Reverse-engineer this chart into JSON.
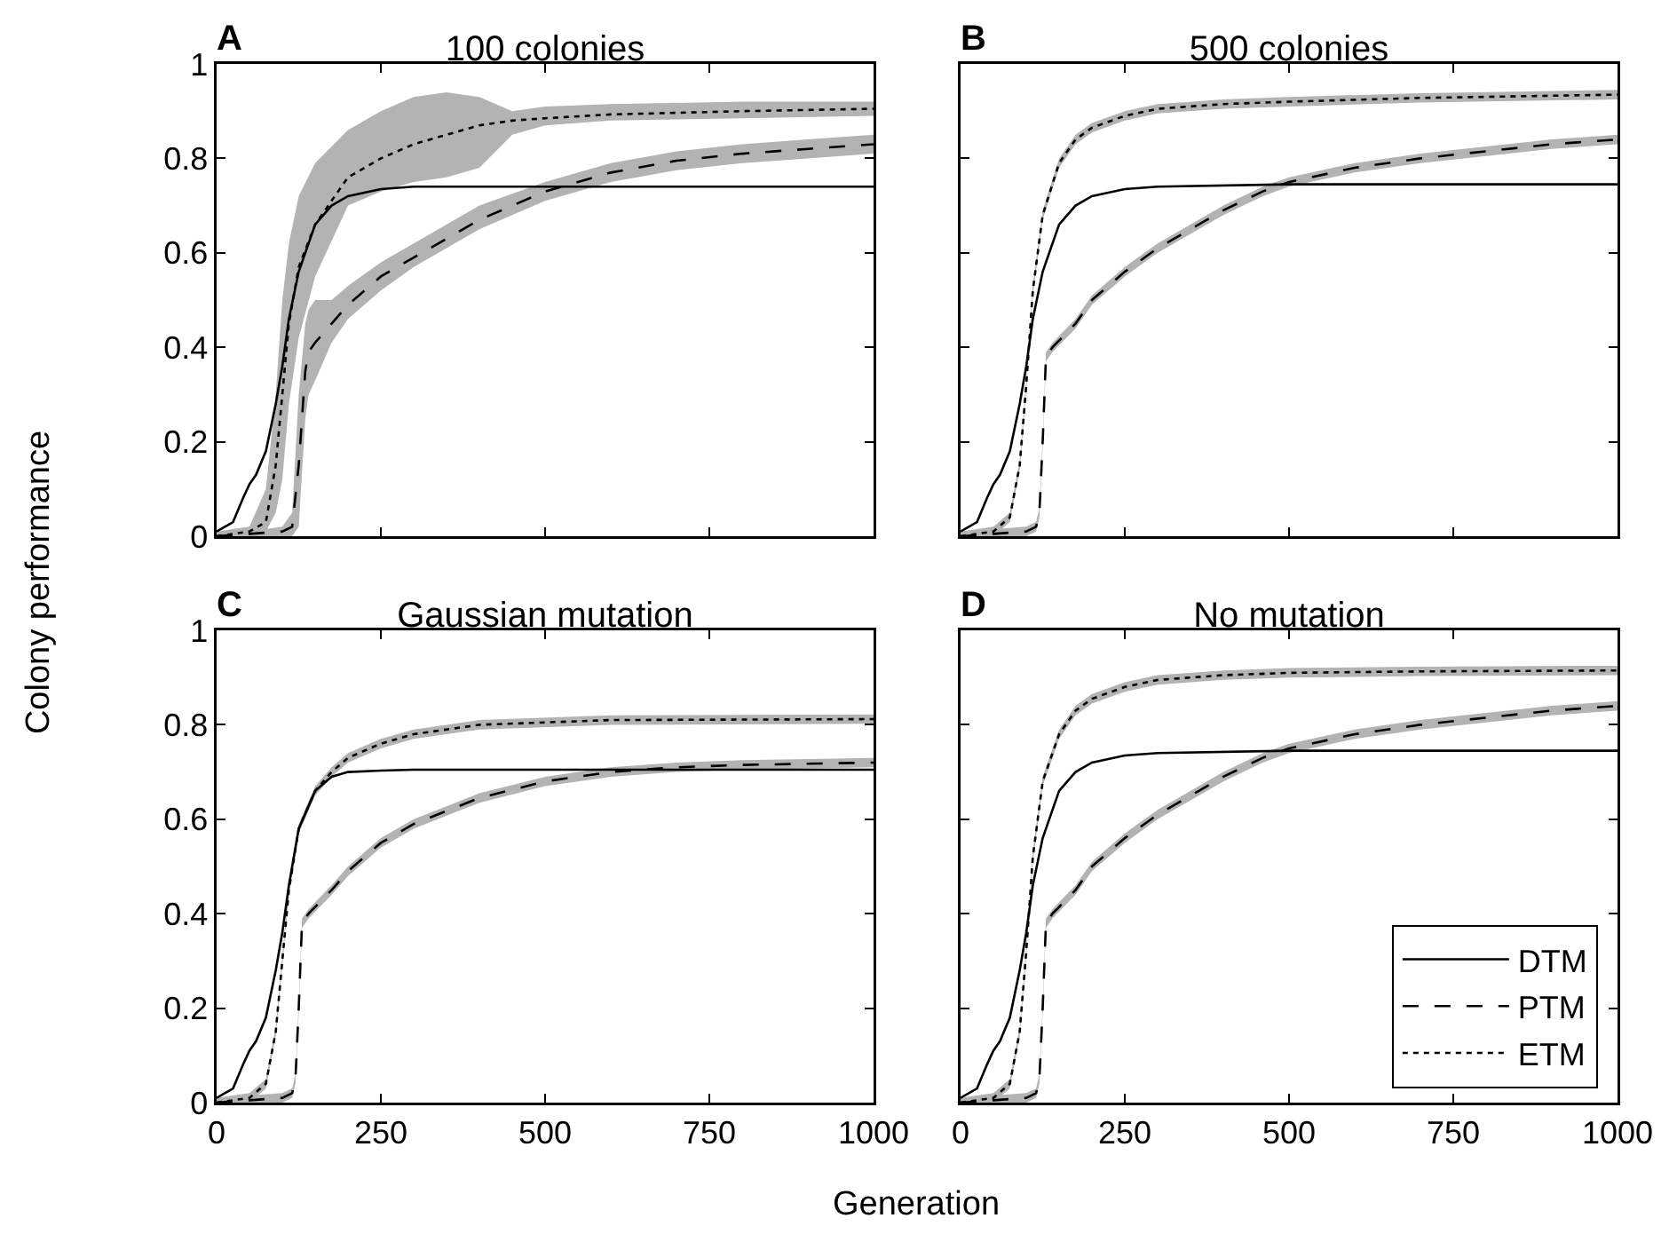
{
  "chart_data": [
    {
      "type": "line",
      "title": "100 colonies",
      "annotations": [
        "A"
      ],
      "xlim": [
        0,
        1000
      ],
      "xticks": [
        0,
        250,
        500,
        750,
        1000
      ],
      "ylim": [
        0,
        1
      ],
      "yticks": [
        0,
        0.2,
        0.4,
        0.6,
        0.8,
        1
      ],
      "tick_labels": "y",
      "grid": false,
      "series": [
        {
          "color": "#000000",
          "line_style": "solid",
          "x": [
            0,
            25,
            40,
            50,
            60,
            75,
            90,
            100,
            110,
            125,
            150,
            175,
            200,
            250,
            300,
            500,
            1000
          ],
          "values": [
            0.01,
            0.03,
            0.08,
            0.11,
            0.13,
            0.18,
            0.28,
            0.36,
            0.46,
            0.56,
            0.66,
            0.7,
            0.72,
            0.735,
            0.74,
            0.74,
            0.74
          ]
        },
        {
          "color": "#000000",
          "line_style": "dashed",
          "x": [
            0,
            50,
            100,
            115,
            125,
            135,
            140,
            150,
            175,
            200,
            250,
            300,
            400,
            500,
            600,
            700,
            800,
            900,
            1000
          ],
          "values": [
            0,
            0.005,
            0.01,
            0.02,
            0.15,
            0.35,
            0.39,
            0.41,
            0.45,
            0.49,
            0.55,
            0.59,
            0.67,
            0.73,
            0.77,
            0.795,
            0.81,
            0.82,
            0.83
          ],
          "lower": [
            0,
            0,
            0,
            0,
            0.02,
            0.25,
            0.3,
            0.33,
            0.41,
            0.46,
            0.52,
            0.57,
            0.65,
            0.71,
            0.75,
            0.775,
            0.79,
            0.8,
            0.81
          ],
          "upper": [
            0.01,
            0.01,
            0.02,
            0.05,
            0.3,
            0.45,
            0.48,
            0.5,
            0.5,
            0.53,
            0.58,
            0.62,
            0.7,
            0.75,
            0.79,
            0.815,
            0.83,
            0.84,
            0.85
          ]
        },
        {
          "color": "#000000",
          "line_style": "dotted",
          "x": [
            0,
            50,
            75,
            90,
            100,
            110,
            125,
            150,
            200,
            250,
            300,
            350,
            400,
            450,
            500,
            600,
            800,
            1000
          ],
          "values": [
            0,
            0.01,
            0.03,
            0.15,
            0.3,
            0.45,
            0.57,
            0.66,
            0.76,
            0.8,
            0.83,
            0.85,
            0.87,
            0.88,
            0.885,
            0.893,
            0.9,
            0.905
          ],
          "lower": [
            0,
            0,
            0.01,
            0.05,
            0.12,
            0.28,
            0.42,
            0.55,
            0.7,
            0.73,
            0.75,
            0.76,
            0.78,
            0.85,
            0.87,
            0.88,
            0.885,
            0.89
          ],
          "upper": [
            0.01,
            0.02,
            0.1,
            0.3,
            0.5,
            0.62,
            0.72,
            0.79,
            0.86,
            0.9,
            0.93,
            0.94,
            0.93,
            0.9,
            0.91,
            0.915,
            0.92,
            0.92
          ]
        }
      ]
    },
    {
      "type": "line",
      "title": "500 colonies",
      "annotations": [
        "B"
      ],
      "xlim": [
        0,
        1000
      ],
      "xticks": [
        0,
        250,
        500,
        750,
        1000
      ],
      "ylim": [
        0,
        1
      ],
      "yticks": [
        0,
        0.2,
        0.4,
        0.6,
        0.8,
        1
      ],
      "tick_labels": false,
      "grid": false,
      "series": [
        {
          "color": "#000000",
          "line_style": "solid",
          "x": [
            0,
            25,
            40,
            50,
            60,
            75,
            90,
            100,
            110,
            125,
            150,
            175,
            200,
            250,
            300,
            500,
            1000
          ],
          "values": [
            0.01,
            0.03,
            0.08,
            0.11,
            0.13,
            0.18,
            0.28,
            0.36,
            0.46,
            0.56,
            0.66,
            0.7,
            0.72,
            0.735,
            0.74,
            0.745,
            0.745
          ]
        },
        {
          "color": "#000000",
          "line_style": "dashed",
          "x": [
            0,
            50,
            100,
            115,
            120,
            125,
            130,
            140,
            175,
            200,
            250,
            300,
            400,
            460,
            500,
            600,
            700,
            800,
            900,
            1000
          ],
          "values": [
            0,
            0.005,
            0.01,
            0.02,
            0.05,
            0.2,
            0.38,
            0.4,
            0.45,
            0.5,
            0.56,
            0.61,
            0.69,
            0.73,
            0.75,
            0.78,
            0.8,
            0.815,
            0.83,
            0.84
          ],
          "lower": [
            0,
            0,
            0,
            0.01,
            0.04,
            0.19,
            0.37,
            0.39,
            0.44,
            0.49,
            0.55,
            0.6,
            0.68,
            0.72,
            0.74,
            0.77,
            0.79,
            0.805,
            0.82,
            0.83
          ],
          "upper": [
            0.01,
            0.015,
            0.02,
            0.03,
            0.06,
            0.21,
            0.39,
            0.41,
            0.46,
            0.51,
            0.57,
            0.62,
            0.7,
            0.74,
            0.76,
            0.79,
            0.81,
            0.825,
            0.84,
            0.85
          ]
        },
        {
          "color": "#000000",
          "line_style": "dotted",
          "x": [
            0,
            50,
            75,
            90,
            100,
            110,
            125,
            150,
            175,
            200,
            250,
            300,
            400,
            500,
            700,
            1000
          ],
          "values": [
            0,
            0.01,
            0.04,
            0.15,
            0.32,
            0.52,
            0.68,
            0.79,
            0.84,
            0.865,
            0.89,
            0.905,
            0.915,
            0.92,
            0.928,
            0.935
          ],
          "lower": [
            0,
            0,
            0.03,
            0.14,
            0.31,
            0.51,
            0.67,
            0.78,
            0.83,
            0.855,
            0.88,
            0.895,
            0.905,
            0.91,
            0.918,
            0.925
          ],
          "upper": [
            0.01,
            0.02,
            0.05,
            0.16,
            0.33,
            0.53,
            0.69,
            0.8,
            0.85,
            0.875,
            0.9,
            0.915,
            0.925,
            0.93,
            0.938,
            0.945
          ]
        }
      ]
    },
    {
      "type": "line",
      "title": "Gaussian mutation",
      "annotations": [
        "C"
      ],
      "xlabel": "Generation",
      "ylabel": "Colony performance",
      "xlim": [
        0,
        1000
      ],
      "xticks": [
        0,
        250,
        500,
        750,
        1000
      ],
      "ylim": [
        0,
        1
      ],
      "yticks": [
        0,
        0.2,
        0.4,
        0.6,
        0.8,
        1
      ],
      "grid": false,
      "series": [
        {
          "color": "#000000",
          "line_style": "solid",
          "x": [
            0,
            25,
            40,
            50,
            60,
            75,
            90,
            100,
            110,
            125,
            150,
            175,
            200,
            250,
            300,
            500,
            1000
          ],
          "values": [
            0.01,
            0.03,
            0.08,
            0.11,
            0.13,
            0.18,
            0.28,
            0.36,
            0.46,
            0.58,
            0.66,
            0.69,
            0.7,
            0.703,
            0.705,
            0.705,
            0.705
          ]
        },
        {
          "color": "#000000",
          "line_style": "dashed",
          "x": [
            0,
            50,
            100,
            115,
            120,
            125,
            130,
            140,
            175,
            200,
            250,
            300,
            400,
            500,
            600,
            700,
            800,
            1000
          ],
          "values": [
            0,
            0.005,
            0.01,
            0.02,
            0.05,
            0.2,
            0.38,
            0.4,
            0.45,
            0.49,
            0.55,
            0.59,
            0.645,
            0.68,
            0.7,
            0.71,
            0.715,
            0.72
          ],
          "lower": [
            0,
            0,
            0,
            0.01,
            0.04,
            0.19,
            0.37,
            0.39,
            0.44,
            0.48,
            0.54,
            0.58,
            0.635,
            0.67,
            0.69,
            0.7,
            0.705,
            0.71
          ],
          "upper": [
            0.01,
            0.015,
            0.02,
            0.03,
            0.06,
            0.21,
            0.39,
            0.41,
            0.46,
            0.5,
            0.56,
            0.6,
            0.655,
            0.69,
            0.71,
            0.72,
            0.725,
            0.73
          ]
        },
        {
          "color": "#000000",
          "line_style": "dotted",
          "x": [
            0,
            50,
            75,
            90,
            100,
            110,
            125,
            150,
            175,
            200,
            250,
            300,
            400,
            600,
            1000
          ],
          "values": [
            0,
            0.01,
            0.04,
            0.15,
            0.3,
            0.45,
            0.58,
            0.66,
            0.7,
            0.73,
            0.76,
            0.78,
            0.8,
            0.81,
            0.812
          ],
          "lower": [
            0,
            0,
            0.03,
            0.14,
            0.29,
            0.44,
            0.57,
            0.65,
            0.69,
            0.72,
            0.75,
            0.77,
            0.79,
            0.8,
            0.802
          ],
          "upper": [
            0.01,
            0.02,
            0.05,
            0.16,
            0.31,
            0.46,
            0.59,
            0.67,
            0.71,
            0.74,
            0.77,
            0.79,
            0.81,
            0.82,
            0.822
          ]
        }
      ]
    },
    {
      "type": "line",
      "title": "No mutation",
      "annotations": [
        "D"
      ],
      "xlim": [
        0,
        1000
      ],
      "xticks": [
        0,
        250,
        500,
        750,
        1000
      ],
      "ylim": [
        0,
        1
      ],
      "yticks": [
        0,
        0.2,
        0.4,
        0.6,
        0.8,
        1
      ],
      "tick_labels": "x",
      "grid": false,
      "legend": "bottom right",
      "series": [
        {
          "name": "DTM",
          "color": "#000000",
          "line_style": "solid",
          "x": [
            0,
            25,
            40,
            50,
            60,
            75,
            90,
            100,
            110,
            125,
            150,
            175,
            200,
            250,
            300,
            500,
            1000
          ],
          "values": [
            0.01,
            0.03,
            0.08,
            0.11,
            0.13,
            0.18,
            0.28,
            0.36,
            0.46,
            0.56,
            0.66,
            0.7,
            0.72,
            0.735,
            0.74,
            0.745,
            0.745
          ]
        },
        {
          "name": "PTM",
          "color": "#000000",
          "line_style": "dashed",
          "x": [
            0,
            50,
            100,
            115,
            120,
            125,
            130,
            140,
            175,
            200,
            250,
            300,
            400,
            460,
            500,
            600,
            700,
            800,
            900,
            1000
          ],
          "values": [
            0,
            0.005,
            0.01,
            0.02,
            0.05,
            0.2,
            0.38,
            0.4,
            0.45,
            0.5,
            0.56,
            0.61,
            0.69,
            0.73,
            0.75,
            0.78,
            0.8,
            0.815,
            0.83,
            0.84
          ],
          "lower": [
            0,
            0,
            0,
            0.01,
            0.04,
            0.19,
            0.37,
            0.39,
            0.44,
            0.49,
            0.55,
            0.6,
            0.68,
            0.72,
            0.74,
            0.77,
            0.79,
            0.805,
            0.82,
            0.83
          ],
          "upper": [
            0.01,
            0.015,
            0.02,
            0.03,
            0.06,
            0.21,
            0.39,
            0.41,
            0.46,
            0.51,
            0.57,
            0.62,
            0.7,
            0.74,
            0.76,
            0.79,
            0.81,
            0.825,
            0.84,
            0.85
          ]
        },
        {
          "name": "ETM",
          "color": "#000000",
          "line_style": "dotted",
          "x": [
            0,
            50,
            75,
            90,
            100,
            110,
            125,
            150,
            175,
            200,
            250,
            300,
            400,
            500,
            700,
            1000
          ],
          "values": [
            0,
            0.01,
            0.04,
            0.15,
            0.32,
            0.52,
            0.68,
            0.78,
            0.83,
            0.855,
            0.88,
            0.895,
            0.905,
            0.91,
            0.913,
            0.915
          ],
          "lower": [
            0,
            0,
            0.03,
            0.14,
            0.31,
            0.51,
            0.67,
            0.77,
            0.82,
            0.845,
            0.87,
            0.885,
            0.895,
            0.9,
            0.903,
            0.905
          ],
          "upper": [
            0.01,
            0.02,
            0.05,
            0.16,
            0.33,
            0.53,
            0.69,
            0.79,
            0.84,
            0.865,
            0.89,
            0.905,
            0.915,
            0.92,
            0.923,
            0.925
          ]
        }
      ]
    }
  ]
}
